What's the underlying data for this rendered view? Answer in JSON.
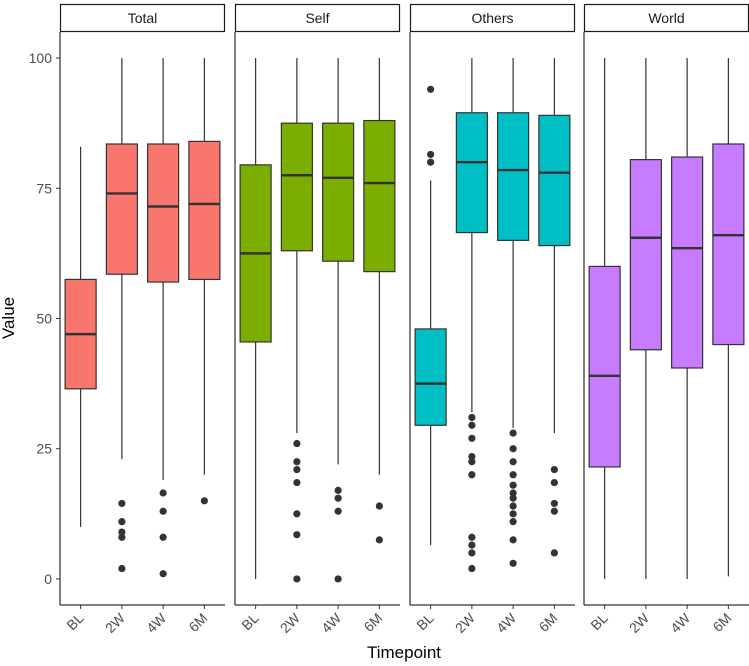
{
  "chart_data": {
    "type": "boxplot",
    "xlabel": "Timepoint",
    "ylabel": "Value",
    "ylim": [
      -5,
      105
    ],
    "yticks": [
      0,
      25,
      50,
      75,
      100
    ],
    "categories": [
      "BL",
      "2W",
      "4W",
      "6M"
    ],
    "panels": [
      {
        "name": "Total",
        "color": "#F8766D",
        "boxes": [
          {
            "timepoint": "BL",
            "min": 10,
            "q1": 36.5,
            "median": 47,
            "q3": 57.5,
            "max": 83,
            "outliers": []
          },
          {
            "timepoint": "2W",
            "min": 23,
            "q1": 58.5,
            "median": 74,
            "q3": 83.5,
            "max": 100,
            "outliers": [
              14.5,
              11,
              9,
              8,
              2
            ]
          },
          {
            "timepoint": "4W",
            "min": 19,
            "q1": 57,
            "median": 71.5,
            "q3": 83.5,
            "max": 100,
            "outliers": [
              16.5,
              13,
              8,
              1
            ]
          },
          {
            "timepoint": "6M",
            "min": 20,
            "q1": 57.5,
            "median": 72,
            "q3": 84,
            "max": 100,
            "outliers": [
              15
            ]
          }
        ]
      },
      {
        "name": "Self",
        "color": "#7CAE00",
        "boxes": [
          {
            "timepoint": "BL",
            "min": 0,
            "q1": 45.5,
            "median": 62.5,
            "q3": 79.5,
            "max": 100,
            "outliers": []
          },
          {
            "timepoint": "2W",
            "min": 28,
            "q1": 63,
            "median": 77.5,
            "q3": 87.5,
            "max": 100,
            "outliers": [
              26,
              22.5,
              21,
              18.5,
              12.5,
              8.5,
              0
            ]
          },
          {
            "timepoint": "4W",
            "min": 22,
            "q1": 61,
            "median": 77,
            "q3": 87.5,
            "max": 100,
            "outliers": [
              17,
              15.5,
              13,
              0
            ]
          },
          {
            "timepoint": "6M",
            "min": 20,
            "q1": 59,
            "median": 76,
            "q3": 88,
            "max": 100,
            "outliers": [
              14,
              7.5
            ]
          }
        ]
      },
      {
        "name": "Others",
        "color": "#00BFC4",
        "boxes": [
          {
            "timepoint": "BL",
            "min": 6.5,
            "q1": 29.5,
            "median": 37.5,
            "q3": 48,
            "max": 76.5,
            "outliers": [
              94,
              81.5,
              80
            ]
          },
          {
            "timepoint": "2W",
            "min": 32,
            "q1": 66.5,
            "median": 80,
            "q3": 89.5,
            "max": 100,
            "outliers": [
              31,
              29.5,
              27,
              23.5,
              22.5,
              20,
              8,
              6.5,
              5,
              2
            ]
          },
          {
            "timepoint": "4W",
            "min": 29,
            "q1": 65,
            "median": 78.5,
            "q3": 89.5,
            "max": 100,
            "outliers": [
              28,
              25,
              22.5,
              20,
              18,
              16.5,
              15.5,
              14,
              12.5,
              11,
              7.5,
              3
            ]
          },
          {
            "timepoint": "6M",
            "min": 28,
            "q1": 64,
            "median": 78,
            "q3": 89,
            "max": 100,
            "outliers": [
              21,
              18.5,
              14.5,
              13,
              5
            ]
          }
        ]
      },
      {
        "name": "World",
        "color": "#C77CFF",
        "boxes": [
          {
            "timepoint": "BL",
            "min": 0,
            "q1": 21.5,
            "median": 39,
            "q3": 60,
            "max": 100,
            "outliers": []
          },
          {
            "timepoint": "2W",
            "min": 0,
            "q1": 44,
            "median": 65.5,
            "q3": 80.5,
            "max": 100,
            "outliers": []
          },
          {
            "timepoint": "4W",
            "min": 0,
            "q1": 40.5,
            "median": 63.5,
            "q3": 81,
            "max": 100,
            "outliers": []
          },
          {
            "timepoint": "6M",
            "min": 0.5,
            "q1": 45,
            "median": 66,
            "q3": 83.5,
            "max": 100,
            "outliers": []
          }
        ]
      }
    ]
  }
}
